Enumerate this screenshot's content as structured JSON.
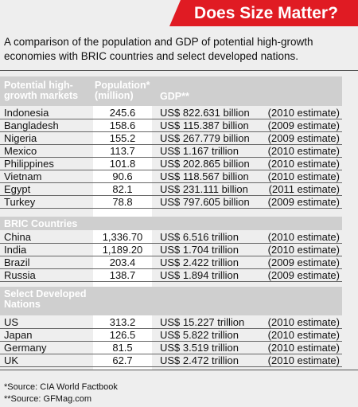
{
  "title": "Does Size Matter?",
  "intro": "A comparison of the population and GDP of potential high-growth economies with BRIC countries and select developed nations.",
  "header": {
    "col1": "Potential high-growth markets",
    "col2": "Population* (million)",
    "col3": "GDP**"
  },
  "sections": [
    {
      "label": "Potential high-growth markets",
      "rows": [
        {
          "country": "Indonesia",
          "population": "245.6",
          "gdp": "US$ 822.631 billion",
          "estimate": "(2010 estimate)"
        },
        {
          "country": "Bangladesh",
          "population": "158.6",
          "gdp": "US$ 115.387 billion",
          "estimate": "(2009 estimate)"
        },
        {
          "country": "Nigeria",
          "population": "155.2",
          "gdp": "US$ 267.779 billion",
          "estimate": "(2009 estimate)"
        },
        {
          "country": "Mexico",
          "population": "113.7",
          "gdp": "US$ 1.167 trillion",
          "estimate": "(2010 estimate)"
        },
        {
          "country": "Philippines",
          "population": "101.8",
          "gdp": "US$ 202.865 billion",
          "estimate": "(2010 estimate)"
        },
        {
          "country": "Vietnam",
          "population": "90.6",
          "gdp": "US$ 118.567 billion",
          "estimate": "(2010 estimate)"
        },
        {
          "country": "Egypt",
          "population": "82.1",
          "gdp": "US$ 231.111 billion",
          "estimate": "(2011 estimate)"
        },
        {
          "country": "Turkey",
          "population": "78.8",
          "gdp": "US$ 797.605 billion",
          "estimate": "(2009 estimate)"
        }
      ]
    },
    {
      "label": "BRIC Countries",
      "rows": [
        {
          "country": "China",
          "population": "1,336.70",
          "gdp": "US$ 6.516 trillion",
          "estimate": "(2010 estimate)"
        },
        {
          "country": "India",
          "population": "1,189.20",
          "gdp": "US$ 1.704 trillion",
          "estimate": "(2010 estimate)"
        },
        {
          "country": "Brazil",
          "population": "203.4",
          "gdp": "US$ 2.422 trillion",
          "estimate": "(2009 estimate)"
        },
        {
          "country": "Russia",
          "population": "138.7",
          "gdp": "US$ 1.894 trillion",
          "estimate": "(2009 estimate)"
        }
      ]
    },
    {
      "label": "Select Developed Nations",
      "rows": [
        {
          "country": "US",
          "population": "313.2",
          "gdp": "US$ 15.227 trillion",
          "estimate": "(2010 estimate)"
        },
        {
          "country": "Japan",
          "population": "126.5",
          "gdp": "US$ 5.822 trillion",
          "estimate": "(2010 estimate)"
        },
        {
          "country": "Germany",
          "population": "81.5",
          "gdp": "US$ 3.519 trillion",
          "estimate": "(2010 estimate)"
        },
        {
          "country": "UK",
          "population": "62.7",
          "gdp": "US$ 2.472 trillion",
          "estimate": "(2010 estimate)"
        }
      ]
    }
  ],
  "sources": [
    "*Source: CIA World Factbook",
    "**Source: GFMag.com"
  ]
}
